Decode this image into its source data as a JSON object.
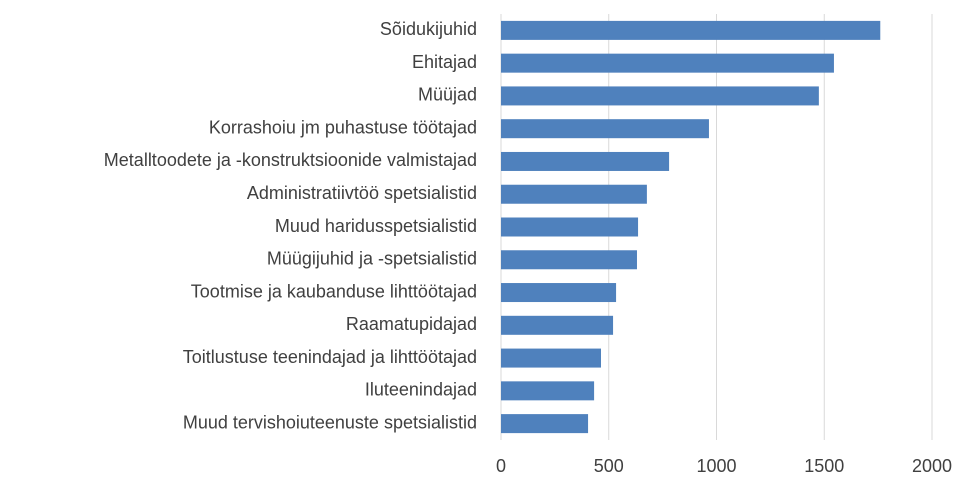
{
  "chart_data": {
    "type": "barh",
    "categories": [
      "Sõidukijuhid",
      "Ehitajad",
      "Müüjad",
      "Korrashoiu jm puhastuse töötajad",
      "Metalltoodete ja -konstruktsioonide valmistajad",
      "Administratiivtöö spetsialistid",
      "Muud haridusspetsialistid",
      "Müügijuhid ja -spetsialistid",
      "Tootmise ja kaubanduse lihttöötajad",
      "Raamatupidajad",
      "Toitlustuse teenindajad ja lihttöötajad",
      "Iluteenindajad",
      "Muud tervishoiuteenuste spetsialistid"
    ],
    "values": [
      1760,
      1545,
      1475,
      965,
      780,
      677,
      636,
      631,
      534,
      520,
      464,
      432,
      404
    ],
    "color": "#4f81bd",
    "xlim": [
      0,
      2000
    ],
    "xticks": [
      0,
      500,
      1000,
      1500,
      2000
    ],
    "grid": true
  }
}
